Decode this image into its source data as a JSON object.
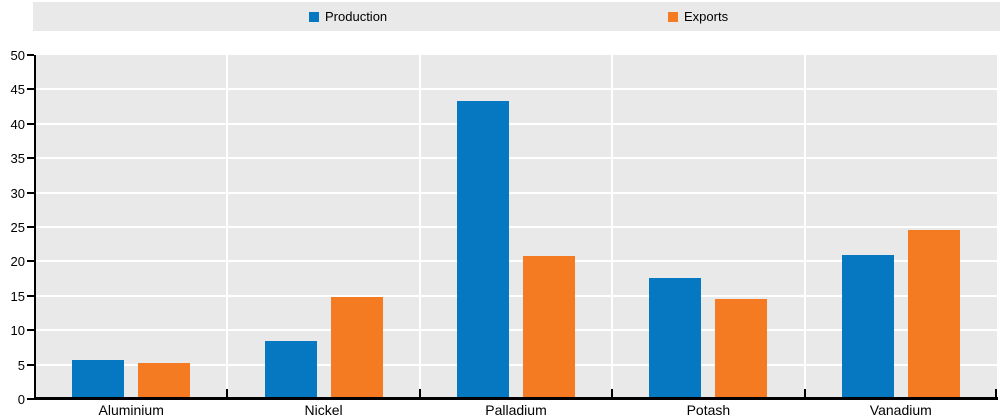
{
  "legend": {
    "items": [
      {
        "label": "Production",
        "color": "#0578c1"
      },
      {
        "label": "Exports",
        "color": "#f47b21"
      }
    ]
  },
  "chart_data": {
    "type": "bar",
    "categories": [
      "Aluminium",
      "Nickel",
      "Palladium",
      "Potash",
      "Vanadium"
    ],
    "series": [
      {
        "name": "Production",
        "color": "#0578c1",
        "values": [
          5.6,
          8.4,
          43.3,
          17.6,
          21.0
        ]
      },
      {
        "name": "Exports",
        "color": "#f47b21",
        "values": [
          5.2,
          14.8,
          20.8,
          14.5,
          24.6
        ]
      }
    ],
    "title": "",
    "xlabel": "",
    "ylabel": "",
    "ylim": [
      0,
      50
    ],
    "ytick_step": 5,
    "grid": true,
    "grid_color": "#ffffff",
    "plot_bg": "#e9e9e9",
    "axis_color": "#000000",
    "legend_position": "top"
  }
}
